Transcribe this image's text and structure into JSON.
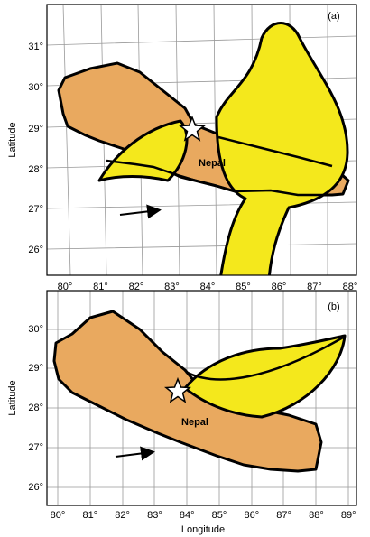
{
  "panels": [
    {
      "label": "(a)",
      "place": "Nepal",
      "y_axis_title": "Latitude",
      "lat_labels": [
        "31°",
        "30°",
        "29°",
        "28°",
        "27°",
        "26°"
      ],
      "lon_labels": [
        "80°",
        "81°",
        "82°",
        "83°",
        "84°",
        "85°",
        "86°",
        "87°",
        "88°"
      ]
    },
    {
      "label": "(b)",
      "place": "Nepal",
      "y_axis_title": "Latitude",
      "lat_labels": [
        "30°",
        "29°",
        "28°",
        "27°",
        "26°"
      ],
      "lon_labels": [
        "80°",
        "81°",
        "82°",
        "83°",
        "84°",
        "85°",
        "86°",
        "87°",
        "88°",
        "89°"
      ],
      "x_axis_title": "Longitude"
    }
  ]
}
